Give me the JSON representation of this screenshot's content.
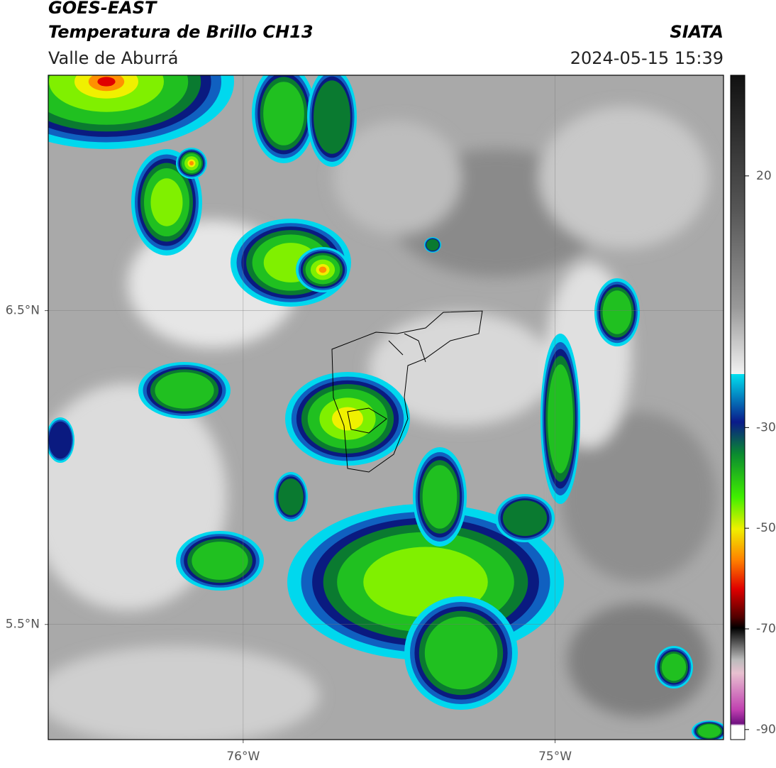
{
  "header": {
    "line1": "GOES-EAST",
    "line2": "Temperatura de Brillo CH13",
    "source": "SIATA",
    "region": "Valle de Aburrá",
    "datetime": "2024-05-15 15:39"
  },
  "map": {
    "lonlim": [
      -76.625,
      -74.46
    ],
    "latlim": [
      5.133,
      7.25
    ],
    "lonticks": [
      {
        "value": -76,
        "label": "76°W"
      },
      {
        "value": -75,
        "label": "75°W"
      }
    ],
    "latticks": [
      {
        "value": 6.5,
        "label": "6.5°N"
      },
      {
        "value": 5.5,
        "label": "5.5°N"
      }
    ],
    "grid": true
  },
  "colorbar": {
    "lim": [
      -92,
      40
    ],
    "ticks": [
      20,
      -30,
      -50,
      -70,
      -90
    ]
  }
}
